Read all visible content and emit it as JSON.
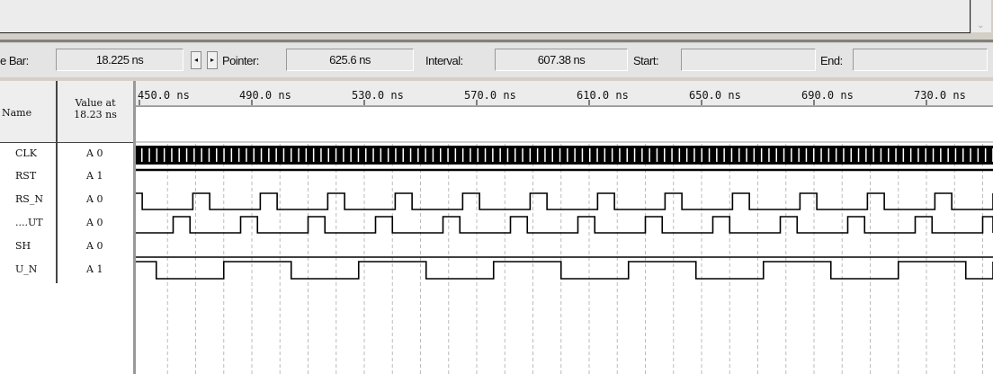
{
  "toolbar": {
    "master_time_bar_label": "e Bar:",
    "master_time_bar_value": "18.225 ns",
    "prev_arrow": "◂",
    "next_arrow": "▸",
    "pointer_label": "Pointer:",
    "pointer_value": "625.6 ns",
    "interval_label": "Interval:",
    "interval_value": "607.38 ns",
    "start_label": "Start:",
    "start_value": "",
    "end_label": "End:",
    "end_value": ""
  },
  "columns": {
    "name": "Name",
    "value_line1": "Value at",
    "value_line2": "18.23 ns"
  },
  "signals": [
    {
      "name": "CLK",
      "value": "A 0"
    },
    {
      "name": "RST",
      "value": "A 1"
    },
    {
      "name": "RS_N",
      "value": "A 0"
    },
    {
      "name": "....UT",
      "value": "A 0"
    },
    {
      "name": "SH",
      "value": "A 0"
    },
    {
      "name": "U_N",
      "value": "A 1"
    }
  ],
  "chart_data": {
    "type": "line",
    "xlabel": "",
    "ylabel": "",
    "xlim": [
      450,
      764
    ],
    "x_unit": "ns",
    "grid": true,
    "grid_step": 10,
    "tick_labels": [
      "450.0 ns",
      "490.0 ns",
      "530.0 ns",
      "570.0 ns",
      "610.0 ns",
      "650.0 ns",
      "690.0 ns",
      "730.0 ns"
    ],
    "ticks": [
      450,
      490,
      530,
      570,
      610,
      650,
      690,
      730
    ],
    "series": [
      {
        "signal": "CLK",
        "kind": "clock"
      },
      {
        "signal": "RST",
        "kind": "constant",
        "level": 1
      },
      {
        "signal": "RS_N",
        "kind": "pulse",
        "initial": 1,
        "first_rise": 469,
        "high": 6,
        "period": 24,
        "first_fall": 451
      },
      {
        "signal": "....UT",
        "kind": "pulse",
        "initial": 0,
        "first_rise": 462,
        "high": 6,
        "period": 24
      },
      {
        "signal": "SH",
        "kind": "constant",
        "level": 0
      },
      {
        "signal": "U_N",
        "kind": "pulse",
        "initial": 1,
        "first_fall": 456,
        "first_rise": 480,
        "high": 24,
        "period": 48
      }
    ]
  }
}
